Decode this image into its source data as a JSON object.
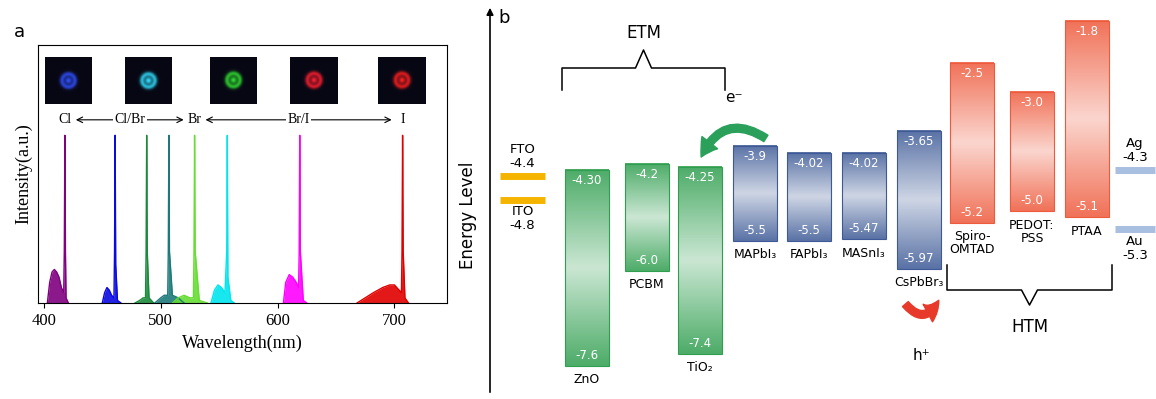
{
  "chart_data": {
    "type": "area",
    "panel_label": "a",
    "xlabel": "Wavelength(nm)",
    "ylabel": "Intensity(a.u.)",
    "xlim": [
      395,
      745
    ],
    "xticks": [
      400,
      500,
      600,
      700
    ],
    "ylim": [
      0,
      1
    ],
    "tick_labels": "x",
    "halide_scale": {
      "points": [
        {
          "text": "Cl",
          "x": 418
        },
        {
          "text": "Br",
          "x": 529
        },
        {
          "text": "I",
          "x": 707
        }
      ],
      "between": [
        "Cl/Br",
        "Br/I"
      ]
    },
    "series": [
      {
        "color": "#800080",
        "x": [
          403,
          405,
          407,
          409,
          411,
          413,
          415,
          417,
          417.5,
          418,
          418.5,
          419,
          421
        ],
        "values": [
          0,
          0.08,
          0.12,
          0.13,
          0.12,
          0.1,
          0.06,
          0.04,
          0.2,
          0.65,
          0.2,
          0.02,
          0
        ]
      },
      {
        "color": "#0a0ae0",
        "x": [
          450,
          452,
          454,
          456,
          458,
          460,
          460.5,
          461,
          461.5,
          463,
          466
        ],
        "values": [
          0,
          0.04,
          0.06,
          0.05,
          0.03,
          0.02,
          0.2,
          0.65,
          0.15,
          0.01,
          0
        ]
      },
      {
        "color": "#1a8a3a",
        "x": [
          478,
          482,
          485,
          487,
          487.5,
          488,
          488.5,
          490,
          494
        ],
        "values": [
          0,
          0.01,
          0.02,
          0.02,
          0.2,
          0.65,
          0.2,
          0.02,
          0
        ]
      },
      {
        "color": "#1e7a7a",
        "x": [
          495,
          500,
          503,
          506,
          506.5,
          507,
          507.5,
          510,
          515,
          520
        ],
        "values": [
          0,
          0.02,
          0.03,
          0.03,
          0.2,
          0.65,
          0.2,
          0.03,
          0.02,
          0
        ]
      },
      {
        "color": "#66dd33",
        "x": [
          510,
          515,
          520,
          525,
          528,
          528.5,
          529,
          529.5,
          533,
          540
        ],
        "values": [
          0,
          0.02,
          0.03,
          0.02,
          0.02,
          0.2,
          0.65,
          0.2,
          0.01,
          0
        ]
      },
      {
        "color": "#00e5ee",
        "x": [
          543,
          546,
          549,
          552,
          555,
          556.5,
          557,
          557.5,
          560,
          563
        ],
        "values": [
          0,
          0.05,
          0.07,
          0.06,
          0.04,
          0.2,
          0.65,
          0.1,
          0.01,
          0
        ]
      },
      {
        "color": "#ff00ff",
        "x": [
          605,
          607,
          610,
          613,
          616,
          618,
          618.5,
          619,
          619.5,
          622,
          625
        ],
        "values": [
          0,
          0.08,
          0.11,
          0.1,
          0.08,
          0.06,
          0.2,
          0.65,
          0.2,
          0.01,
          0
        ]
      },
      {
        "color": "#e00000",
        "x": [
          668,
          675,
          682,
          690,
          696,
          700,
          704,
          706,
          706.5,
          707,
          707.5,
          709,
          712
        ],
        "values": [
          0,
          0.02,
          0.04,
          0.06,
          0.07,
          0.07,
          0.05,
          0.04,
          0.2,
          0.65,
          0.2,
          0.02,
          0
        ]
      }
    ]
  },
  "diagram": {
    "panel_label": "b",
    "ylabel": "Energy Level",
    "ylim": [
      -8.15,
      -1.45
    ],
    "electrodes": [
      {
        "name": "FTO",
        "value": -4.4,
        "side": "left",
        "color": "#f5b400"
      },
      {
        "name": "ITO",
        "value": -4.8,
        "side": "left",
        "color": "#f5b400"
      },
      {
        "name": "Ag",
        "value": -4.3,
        "side": "right",
        "color": "#a9bfe0"
      },
      {
        "name": "Au",
        "value": -5.3,
        "side": "right",
        "color": "#a9bfe0"
      }
    ],
    "materials": [
      {
        "name": "ZnO",
        "lumo": {
          "value": -4.3,
          "label": "-4.30"
        },
        "homo": -7.6,
        "color": "#2f9e4f"
      },
      {
        "name": "PCBM",
        "lumo": -4.2,
        "homo": {
          "value": -6.0,
          "label": "-6.0"
        },
        "color": "#2f9e4f"
      },
      {
        "name": "TiO₂",
        "lumo": -4.25,
        "homo": -7.4,
        "color": "#2f9e4f"
      },
      {
        "name": "MAPbI₃",
        "lumo": -3.9,
        "homo": -5.5,
        "color": "#3d5a96"
      },
      {
        "name": "FAPbI₃",
        "lumo": -4.02,
        "homo": -5.5,
        "color": "#3d5a96"
      },
      {
        "name": "MASnI₃",
        "lumo": -4.02,
        "homo": -5.47,
        "color": "#3d5a96"
      },
      {
        "name": "CsPbBr₃",
        "lumo": -3.65,
        "homo": -5.97,
        "color": "#3d5a96"
      },
      {
        "name": "Spiro-\nOMTAD",
        "lumo": -2.5,
        "homo": -5.2,
        "color": "#ee5a3c"
      },
      {
        "name": "PEDOT:\nPSS",
        "lumo": {
          "value": -3.0,
          "label": "-3.0"
        },
        "homo": {
          "value": -5.0,
          "label": "-5.0"
        },
        "color": "#ee5a3c"
      },
      {
        "name": "PTAA",
        "lumo": -1.8,
        "homo": -5.1,
        "color": "#ee5a3c"
      }
    ],
    "brackets": [
      {
        "text": "ETM",
        "members": [
          "ZnO",
          "PCBM",
          "TiO₂"
        ]
      },
      {
        "text": "HTM",
        "members": [
          "Spiro-\nOMTAD",
          "PEDOT:\nPSS",
          "PTAA"
        ]
      }
    ],
    "arrows": [
      {
        "text": "e⁻",
        "from": "MAPbI₃",
        "to": "TiO₂",
        "color": "#2aa05a"
      },
      {
        "text": "h⁺",
        "from": "CsPbBr₃",
        "to": "Spiro-\nOMTAD",
        "color": "#e83a2a"
      }
    ]
  }
}
